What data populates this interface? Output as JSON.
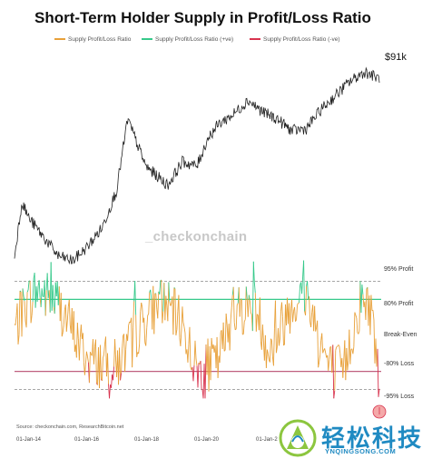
{
  "chart_data": {
    "type": "line",
    "title": "Short-Term Holder Supply in Profit/Loss Ratio",
    "legend_position": "top",
    "series": [
      {
        "name": "Supply Profit/Loss Ratio",
        "color": "#e8a13a"
      },
      {
        "name": "Supply Profit/Loss Ratio (+ve)",
        "color": "#37c98b"
      },
      {
        "name": "Supply Profit/Loss Ratio (-ve)",
        "color": "#d8344f"
      }
    ],
    "levels": [
      {
        "label": "95% Profit",
        "value": 0.9,
        "color": "#888888",
        "style": "dashed"
      },
      {
        "label": "80% Profit",
        "value": 0.6,
        "color": "#37c98b",
        "style": "solid"
      },
      {
        "label": "Break-Even",
        "value": 0.0,
        "color": "#bbbbbb",
        "style": "none"
      },
      {
        "label": "-80% Loss",
        "value": -0.6,
        "color": "#c06080",
        "style": "solid"
      },
      {
        "label": "-95% Loss",
        "value": -0.9,
        "color": "#888888",
        "style": "dashed"
      }
    ],
    "x_ticks": [
      "01-Jan-14",
      "01-Jan-16",
      "01-Jan-18",
      "01-Jan-20",
      "01-Jan-2"
    ],
    "price_label": "$91k",
    "watermark": "_checkonchain",
    "source": "Source: checkonchain.com, ResearchBitcoin.net"
  },
  "brand": {
    "name": "轻松科技",
    "url": "YNQINGSONG.COM"
  }
}
